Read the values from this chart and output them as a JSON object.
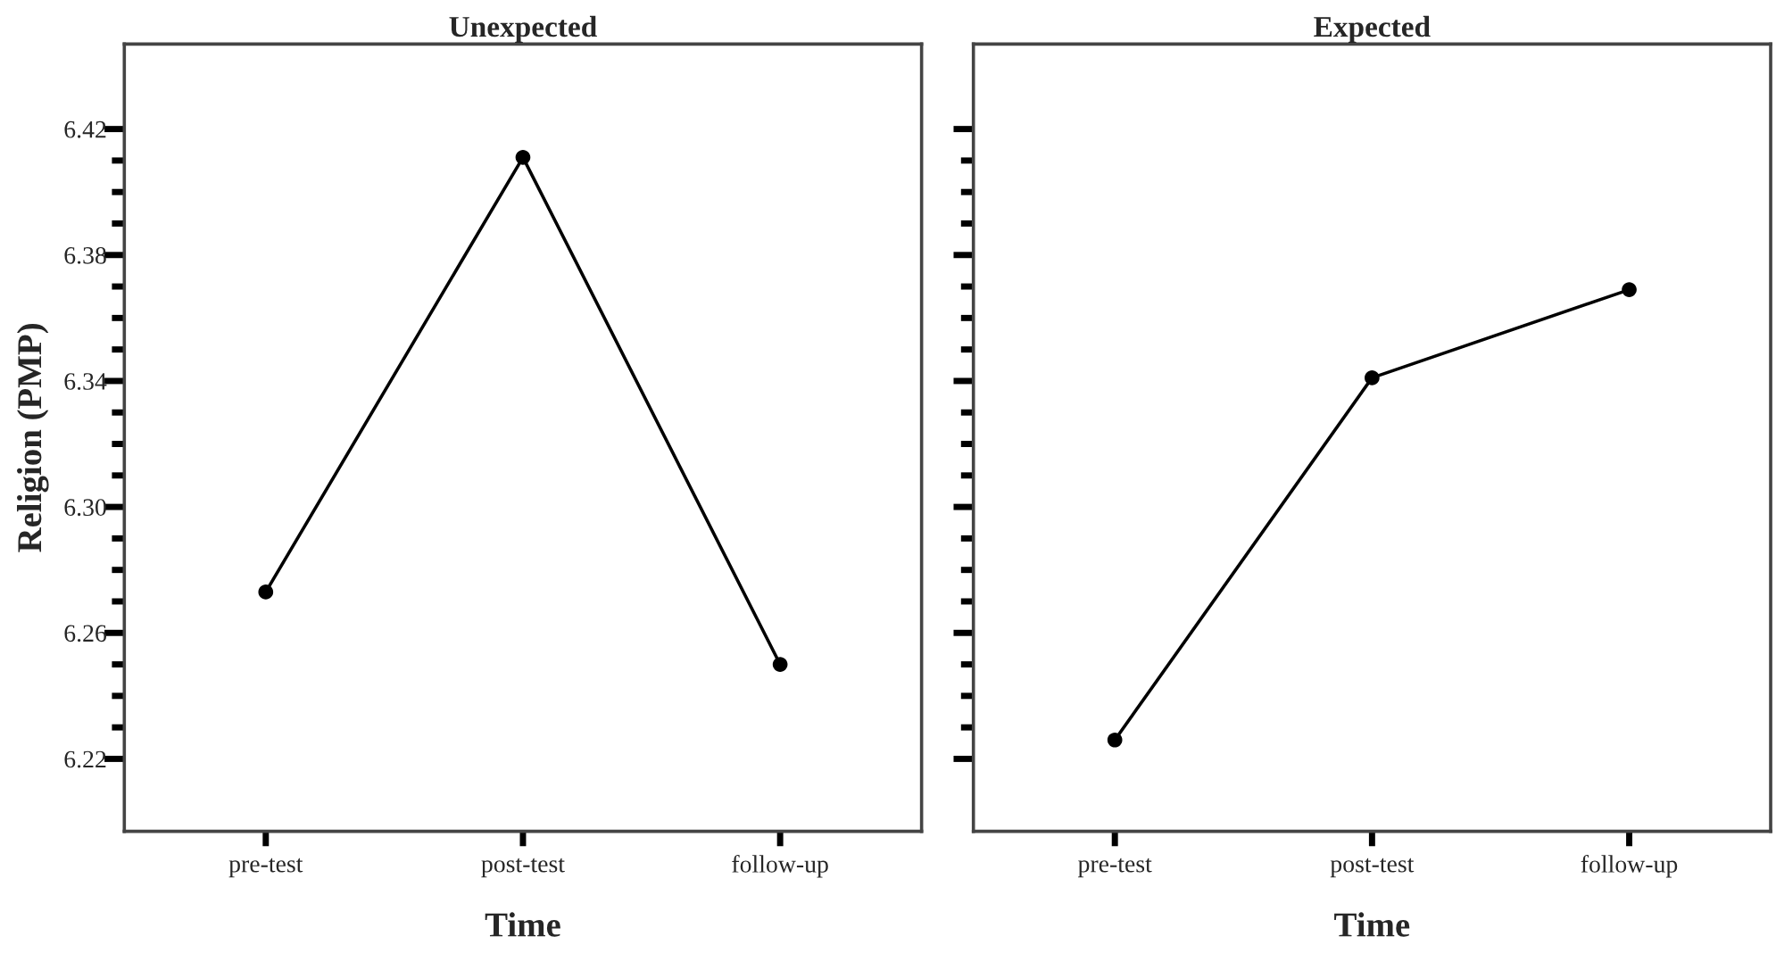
{
  "chart_data": [
    {
      "type": "line",
      "title": "Unexpected",
      "xlabel": "Time",
      "ylabel": "Religion (PMP)",
      "categories": [
        "pre-test",
        "post-test",
        "follow-up"
      ],
      "series": [
        {
          "color": "#000000",
          "values": [
            6.273,
            6.411,
            6.25
          ]
        }
      ],
      "marker": "circle",
      "line_style": "solid",
      "grid": false,
      "legend": false,
      "ylim": [
        6.197,
        6.447
      ],
      "yticks": [
        6.22,
        {
          "value": 6.23,
          "label": null
        },
        {
          "value": 6.24,
          "label": null
        },
        {
          "value": 6.25,
          "label": null
        },
        6.26,
        {
          "value": 6.27,
          "label": null
        },
        {
          "value": 6.28,
          "label": null
        },
        {
          "value": 6.29,
          "label": null
        },
        {
          "value": 6.3,
          "label": "6.30"
        },
        {
          "value": 6.31,
          "label": null
        },
        {
          "value": 6.32,
          "label": null
        },
        {
          "value": 6.33,
          "label": null
        },
        6.34,
        {
          "value": 6.35,
          "label": null
        },
        {
          "value": 6.36,
          "label": null
        },
        {
          "value": 6.37,
          "label": null
        },
        6.38,
        {
          "value": 6.39,
          "label": null
        },
        {
          "value": 6.4,
          "label": null
        },
        {
          "value": 6.41,
          "label": null
        },
        6.42
      ]
    },
    {
      "type": "line",
      "title": "Expected",
      "xlabel": "Time",
      "categories": [
        "pre-test",
        "post-test",
        "follow-up"
      ],
      "series": [
        {
          "color": "#000000",
          "values": [
            6.226,
            6.341,
            6.369
          ]
        }
      ],
      "marker": "circle",
      "line_style": "solid",
      "grid": false,
      "legend": false,
      "tick_labels": "x",
      "ylim": [
        6.197,
        6.447
      ],
      "yticks": [
        6.22,
        {
          "value": 6.23,
          "label": null
        },
        {
          "value": 6.24,
          "label": null
        },
        {
          "value": 6.25,
          "label": null
        },
        6.26,
        {
          "value": 6.27,
          "label": null
        },
        {
          "value": 6.28,
          "label": null
        },
        {
          "value": 6.29,
          "label": null
        },
        6.3,
        {
          "value": 6.31,
          "label": null
        },
        {
          "value": 6.32,
          "label": null
        },
        {
          "value": 6.33,
          "label": null
        },
        6.34,
        {
          "value": 6.35,
          "label": null
        },
        {
          "value": 6.36,
          "label": null
        },
        {
          "value": 6.37,
          "label": null
        },
        6.38,
        {
          "value": 6.39,
          "label": null
        },
        {
          "value": 6.4,
          "label": null
        },
        {
          "value": 6.41,
          "label": null
        },
        6.42
      ]
    }
  ]
}
